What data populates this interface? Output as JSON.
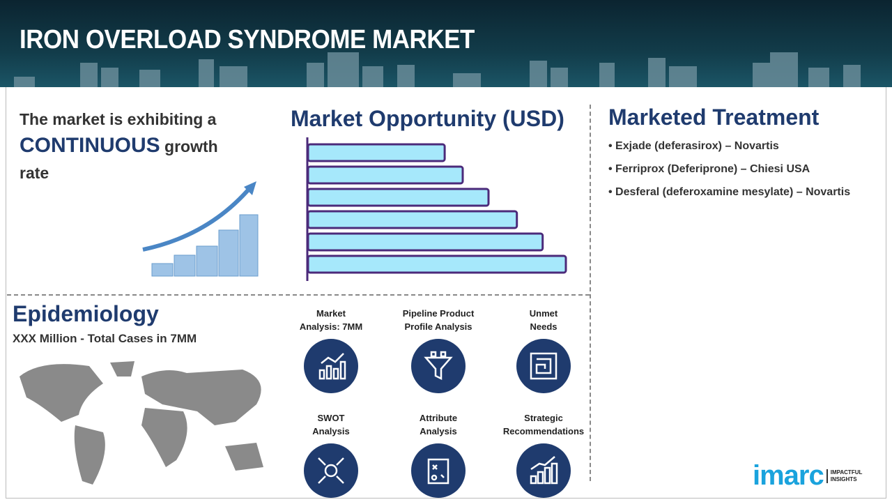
{
  "header": {
    "title": "IRON OVERLOAD SYNDROME MARKET"
  },
  "growth": {
    "line1": "The market is exhibiting a",
    "highlight": "CONTINUOUS",
    "line2": " growth",
    "line3": "rate"
  },
  "market_opportunity": {
    "title": "Market Opportunity (USD)",
    "bar_relative_levels": [
      0.53,
      0.6,
      0.7,
      0.81,
      0.91,
      1.0
    ],
    "bar_fill": "#a6e8fb",
    "bar_stroke": "#4b2a7a"
  },
  "marketed_treatment": {
    "title": "Marketed Treatment",
    "items": [
      "Exjade (deferasirox) – Novartis",
      "Ferriprox (Deferiprone) – Chiesi USA",
      "Desferal (deferoxamine mesylate) – Novartis"
    ]
  },
  "epidemiology": {
    "title": "Epidemiology",
    "subtitle": "XXX Million - Total Cases in 7MM"
  },
  "features": [
    {
      "line1": "Market",
      "line2": "Analysis: 7MM",
      "icon": "line-chart-icon"
    },
    {
      "line1": "Pipeline Product",
      "line2": "Profile Analysis",
      "icon": "funnel-icon"
    },
    {
      "line1": "Unmet",
      "line2": "Needs",
      "icon": "maze-icon"
    },
    {
      "line1": "SWOT",
      "line2": "Analysis",
      "icon": "swot-icon"
    },
    {
      "line1": "Attribute",
      "line2": "Analysis",
      "icon": "clipboard-strategy-icon"
    },
    {
      "line1": "Strategic",
      "line2": "Recommendations",
      "icon": "growth-chart-icon"
    }
  ],
  "logo": {
    "name": "imarc",
    "tag1": "IMPACTFUL",
    "tag2": "INSIGHTS"
  },
  "colors": {
    "navy": "#1f3b6e",
    "logo_blue": "#1aa3dd"
  }
}
